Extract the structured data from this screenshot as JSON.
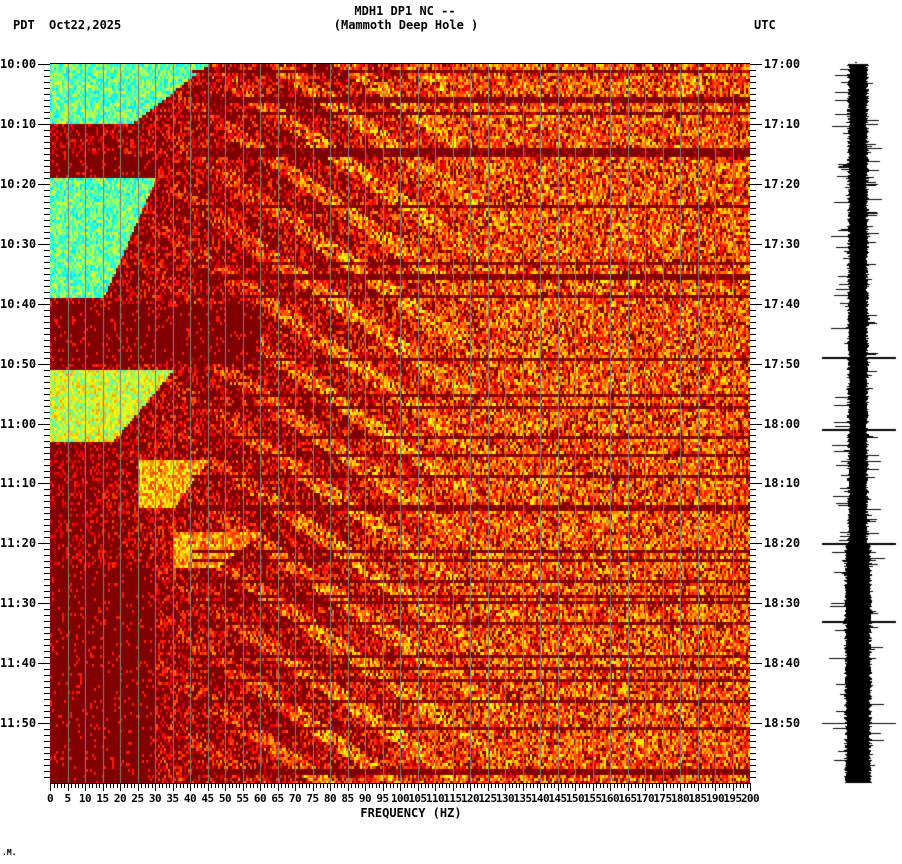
{
  "header": {
    "title_line1": "MDH1 DP1 NC --",
    "title_line2": "(Mammoth Deep Hole )",
    "left_timezone": "PDT",
    "date": "Oct22,2025",
    "right_timezone": "UTC"
  },
  "footer": {
    "corner_mark": ".M."
  },
  "chart_data": {
    "type": "heatmap",
    "title": "MDH1 DP1 NC -- (Mammoth Deep Hole )",
    "subtitle": "Spectrogram with seismogram trace, Oct22,2025",
    "xlabel": "FREQUENCY (HZ)",
    "ylabel_left": "PDT",
    "ylabel_right": "UTC",
    "xlim": [
      0,
      200
    ],
    "x_ticks": [
      0,
      5,
      10,
      15,
      20,
      25,
      30,
      35,
      40,
      45,
      50,
      55,
      60,
      65,
      70,
      75,
      80,
      85,
      90,
      95,
      100,
      105,
      110,
      115,
      120,
      125,
      130,
      135,
      140,
      145,
      150,
      155,
      160,
      165,
      170,
      175,
      180,
      185,
      190,
      195,
      200
    ],
    "x_minor_tick_step": 1,
    "grid": {
      "vertical_lines_every_hz": 5,
      "color": "#808080"
    },
    "y_ticks_left": [
      "10:00",
      "10:10",
      "10:20",
      "10:30",
      "10:40",
      "10:50",
      "11:00",
      "11:10",
      "11:20",
      "11:30",
      "11:40",
      "11:50"
    ],
    "y_ticks_right": [
      "17:00",
      "17:10",
      "17:20",
      "17:30",
      "17:40",
      "17:50",
      "18:00",
      "18:10",
      "18:20",
      "18:30",
      "18:40",
      "18:50"
    ],
    "y_minor_tick_step_minutes": 1,
    "time_span_minutes": 120,
    "colormap": [
      "#800000",
      "#ff0000",
      "#ff8000",
      "#ffff00",
      "#80ff80",
      "#00ffff",
      "#0080ff"
    ],
    "colormap_note": "dark red = low power, yellow/cyan/blue = high power",
    "high_energy_regions": [
      {
        "t_start_min": 0,
        "t_end_min": 10,
        "f_start_hz": 0,
        "f_end_hz": 45,
        "level": 0.85
      },
      {
        "t_start_min": 19,
        "t_end_min": 39,
        "f_start_hz": 0,
        "f_end_hz": 30,
        "level": 0.85
      },
      {
        "t_start_min": 51,
        "t_end_min": 63,
        "f_start_hz": 0,
        "f_end_hz": 35,
        "level": 0.7
      },
      {
        "t_start_min": 66,
        "t_end_min": 74,
        "f_start_hz": 25,
        "f_end_hz": 45,
        "level": 0.55
      },
      {
        "t_start_min": 78,
        "t_end_min": 84,
        "f_start_hz": 35,
        "f_end_hz": 60,
        "level": 0.5
      }
    ],
    "low_energy_regions": [
      {
        "t_start_min": 15,
        "t_end_min": 19,
        "f_start_hz": 0,
        "f_end_hz": 30
      },
      {
        "t_start_min": 40,
        "t_end_min": 50,
        "f_start_hz": 0,
        "f_end_hz": 60
      },
      {
        "t_start_min": 84,
        "t_end_min": 120,
        "f_start_hz": 0,
        "f_end_hz": 30
      }
    ],
    "seismogram": {
      "position": "right",
      "color": "#000000",
      "notable_spikes_min": [
        49,
        61,
        80,
        93,
        110
      ]
    },
    "seed": 20251022
  }
}
